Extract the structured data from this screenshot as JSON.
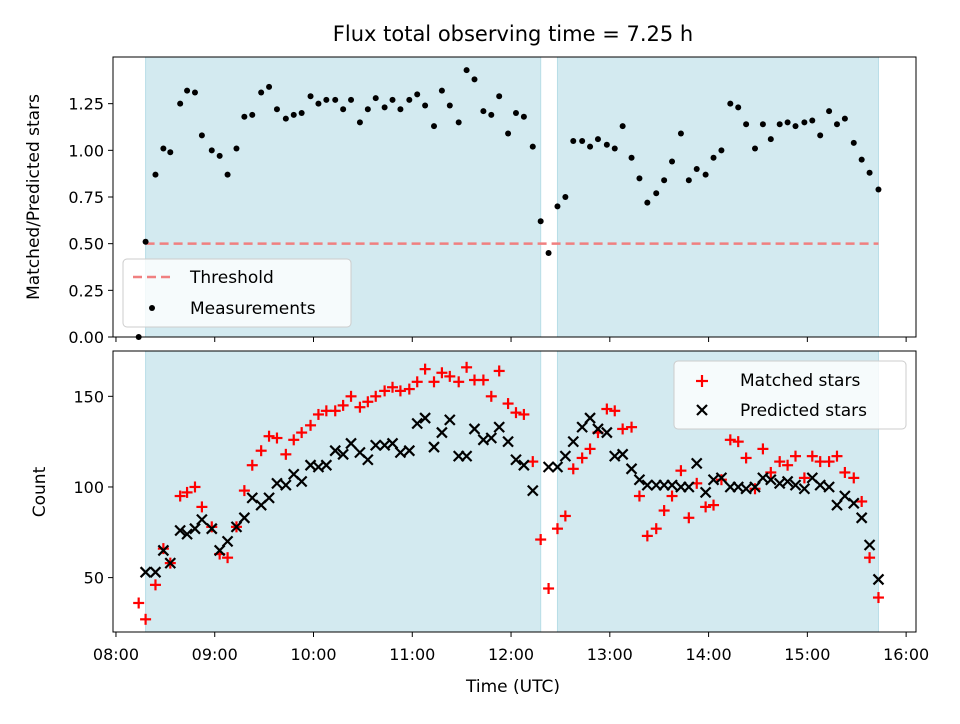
{
  "chart_data": {
    "type": "scatter",
    "title": "Flux total observing time = 7.25 h",
    "xlabel": "Time (UTC)",
    "x_unit": "hours UTC",
    "x_ticks": [
      "08:00",
      "09:00",
      "10:00",
      "11:00",
      "12:00",
      "13:00",
      "14:00",
      "15:00",
      "16:00"
    ],
    "xlim": [
      7.97,
      16.1
    ],
    "observing_windows": [
      [
        8.3,
        12.3
      ],
      [
        12.47,
        15.72
      ]
    ],
    "colors": {
      "window": "#d3eaf0",
      "threshold": "#f08080",
      "measurements": "#000000",
      "matched": "#ff0000",
      "predicted": "#000000"
    },
    "panels": [
      {
        "ylabel": "Matched/Predicted stars",
        "ylim": [
          0,
          1.5
        ],
        "y_ticks": [
          "0.00",
          "0.25",
          "0.50",
          "0.75",
          "1.00",
          "1.25"
        ],
        "legend_position": "lower-left",
        "series": [
          {
            "name": "Threshold",
            "kind": "line",
            "x": [
              8.3,
              15.72
            ],
            "y": [
              0.5,
              0.5
            ]
          },
          {
            "name": "Measurements",
            "kind": "dot",
            "x": [
              8.23,
              8.3,
              8.4,
              8.48,
              8.55,
              8.65,
              8.72,
              8.8,
              8.87,
              8.97,
              9.05,
              9.13,
              9.22,
              9.3,
              9.38,
              9.47,
              9.55,
              9.63,
              9.72,
              9.8,
              9.88,
              9.97,
              10.05,
              10.13,
              10.22,
              10.3,
              10.38,
              10.47,
              10.55,
              10.63,
              10.72,
              10.8,
              10.88,
              10.97,
              11.05,
              11.13,
              11.22,
              11.3,
              11.38,
              11.47,
              11.55,
              11.63,
              11.72,
              11.8,
              11.88,
              11.97,
              12.05,
              12.13,
              12.22,
              12.3,
              12.38,
              12.47,
              12.55,
              12.63,
              12.72,
              12.8,
              12.88,
              12.97,
              13.05,
              13.13,
              13.22,
              13.3,
              13.38,
              13.47,
              13.55,
              13.63,
              13.72,
              13.8,
              13.88,
              13.97,
              14.05,
              14.13,
              14.22,
              14.3,
              14.38,
              14.47,
              14.55,
              14.63,
              14.72,
              14.8,
              14.88,
              14.97,
              15.05,
              15.13,
              15.22,
              15.3,
              15.38,
              15.47,
              15.55,
              15.63,
              15.72
            ],
            "y": [
              0.0,
              0.51,
              0.87,
              1.01,
              0.99,
              1.25,
              1.32,
              1.31,
              1.08,
              1.0,
              0.97,
              0.87,
              1.01,
              1.18,
              1.19,
              1.31,
              1.34,
              1.22,
              1.17,
              1.19,
              1.2,
              1.29,
              1.25,
              1.27,
              1.27,
              1.22,
              1.27,
              1.15,
              1.22,
              1.28,
              1.23,
              1.27,
              1.22,
              1.27,
              1.3,
              1.24,
              1.13,
              1.32,
              1.24,
              1.15,
              1.43,
              1.38,
              1.21,
              1.19,
              1.29,
              1.09,
              1.2,
              1.18,
              1.02,
              0.62,
              0.45,
              0.7,
              0.75,
              1.05,
              1.05,
              1.02,
              1.06,
              1.03,
              1.01,
              1.13,
              0.96,
              0.85,
              0.72,
              0.77,
              0.84,
              0.94,
              1.09,
              0.84,
              0.9,
              0.87,
              0.96,
              1.0,
              1.25,
              1.23,
              1.14,
              1.01,
              1.14,
              1.06,
              1.14,
              1.15,
              1.13,
              1.15,
              1.16,
              1.08,
              1.21,
              1.14,
              1.17,
              1.04,
              0.95,
              0.88,
              0.79
            ]
          }
        ]
      },
      {
        "ylabel": "Count",
        "ylim": [
          20,
          175
        ],
        "y_ticks": [
          "50",
          "100",
          "150"
        ],
        "legend_position": "upper-right",
        "series": [
          {
            "name": "Matched stars",
            "kind": "plus",
            "x": [
              8.23,
              8.3,
              8.4,
              8.48,
              8.55,
              8.65,
              8.72,
              8.8,
              8.87,
              8.97,
              9.05,
              9.13,
              9.22,
              9.3,
              9.38,
              9.47,
              9.55,
              9.63,
              9.72,
              9.8,
              9.88,
              9.97,
              10.05,
              10.13,
              10.22,
              10.3,
              10.38,
              10.47,
              10.55,
              10.63,
              10.72,
              10.8,
              10.88,
              10.97,
              11.05,
              11.13,
              11.22,
              11.3,
              11.38,
              11.47,
              11.55,
              11.63,
              11.72,
              11.8,
              11.88,
              11.97,
              12.05,
              12.13,
              12.22,
              12.3,
              12.38,
              12.47,
              12.55,
              12.63,
              12.72,
              12.8,
              12.88,
              12.97,
              13.05,
              13.13,
              13.22,
              13.3,
              13.38,
              13.47,
              13.55,
              13.63,
              13.72,
              13.8,
              13.88,
              13.97,
              14.05,
              14.13,
              14.22,
              14.3,
              14.38,
              14.47,
              14.55,
              14.63,
              14.72,
              14.8,
              14.88,
              14.97,
              15.05,
              15.13,
              15.22,
              15.3,
              15.38,
              15.47,
              15.55,
              15.63,
              15.72
            ],
            "y": [
              36,
              27,
              46,
              66,
              58,
              95,
              97,
              100,
              89,
              78,
              63,
              61,
              78,
              98,
              112,
              120,
              128,
              127,
              118,
              126,
              130,
              134,
              140,
              142,
              142,
              145,
              150,
              144,
              147,
              150,
              153,
              155,
              153,
              154,
              158,
              165,
              158,
              163,
              161,
              158,
              166,
              159,
              159,
              150,
              164,
              146,
              141,
              140,
              114,
              71,
              44,
              77,
              84,
              110,
              116,
              121,
              130,
              143,
              142,
              132,
              133,
              95,
              73,
              77,
              87,
              95,
              109,
              83,
              102,
              89,
              90,
              104,
              126,
              125,
              116,
              99,
              121,
              108,
              114,
              112,
              117,
              105,
              117,
              114,
              114,
              117,
              108,
              105,
              92,
              61,
              39
            ]
          },
          {
            "name": "Predicted stars",
            "kind": "cross",
            "x": [
              8.3,
              8.4,
              8.48,
              8.55,
              8.65,
              8.72,
              8.8,
              8.87,
              8.97,
              9.05,
              9.13,
              9.22,
              9.3,
              9.38,
              9.47,
              9.55,
              9.63,
              9.72,
              9.8,
              9.88,
              9.97,
              10.05,
              10.13,
              10.22,
              10.3,
              10.38,
              10.47,
              10.55,
              10.63,
              10.72,
              10.8,
              10.88,
              10.97,
              11.05,
              11.13,
              11.22,
              11.3,
              11.38,
              11.47,
              11.55,
              11.63,
              11.72,
              11.8,
              11.88,
              11.97,
              12.05,
              12.13,
              12.22,
              12.38,
              12.47,
              12.55,
              12.63,
              12.72,
              12.8,
              12.88,
              12.97,
              13.05,
              13.13,
              13.22,
              13.3,
              13.38,
              13.47,
              13.55,
              13.63,
              13.72,
              13.8,
              13.88,
              13.97,
              14.05,
              14.13,
              14.22,
              14.3,
              14.38,
              14.47,
              14.55,
              14.63,
              14.72,
              14.8,
              14.88,
              14.97,
              15.05,
              15.13,
              15.22,
              15.3,
              15.38,
              15.47,
              15.55,
              15.63,
              15.72
            ],
            "y": [
              53,
              53,
              65,
              58,
              76,
              74,
              77,
              82,
              77,
              65,
              70,
              78,
              83,
              94,
              90,
              94,
              102,
              101,
              107,
              103,
              112,
              111,
              112,
              120,
              118,
              124,
              119,
              115,
              123,
              123,
              124,
              119,
              120,
              135,
              138,
              122,
              130,
              137,
              117,
              117,
              132,
              126,
              127,
              133,
              125,
              115,
              112,
              98,
              111,
              111,
              117,
              125,
              133,
              138,
              132,
              130,
              117,
              118,
              110,
              104,
              101,
              101,
              101,
              101,
              100,
              100,
              113,
              97,
              104,
              105,
              100,
              100,
              99,
              100,
              105,
              104,
              102,
              103,
              101,
              99,
              105,
              101,
              100,
              90,
              95,
              91,
              83,
              68,
              49
            ]
          }
        ]
      }
    ]
  }
}
